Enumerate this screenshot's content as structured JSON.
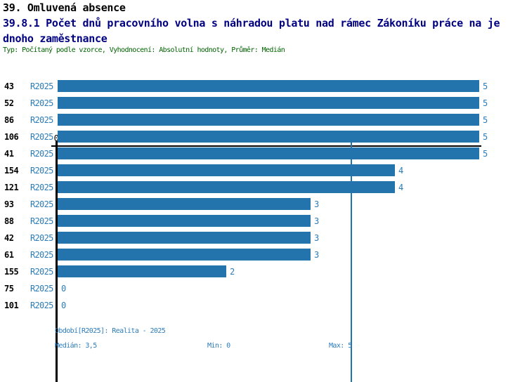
{
  "header": {
    "title_line1": "39. Omluvená absence",
    "title_line2": "39.8.1 Počet dnů pracovního volna s náhradou platu nad rámec Zákoníku práce na je",
    "title_line3": "dnoho zaměstnance",
    "meta": "Typ: Počítaný podle vzorce, Vyhodnocení: Absolutní hodnoty, Průměr: Medián"
  },
  "chart_data": {
    "type": "bar",
    "orientation": "horizontal",
    "title": "39.8.1 Počet dnů pracovního volna s náhradou platu nad rámec Zákoníku práce na jednoho zaměstnance",
    "categories": [
      "43",
      "52",
      "86",
      "106",
      "41",
      "154",
      "121",
      "93",
      "88",
      "42",
      "61",
      "155",
      "75",
      "101"
    ],
    "series": [
      {
        "name": "R2025",
        "values": [
          5,
          5,
          5,
          5,
          5,
          4,
          4,
          3,
          3,
          3,
          3,
          2,
          0,
          0
        ]
      }
    ],
    "period_label": "R2025",
    "origin_tick_label": "0",
    "xlim": [
      0,
      5
    ],
    "median_line": 3.5,
    "grid": false,
    "legend_position": "none",
    "bar_color": "#2374ad",
    "value_label_color": "#2c7cba",
    "axis_color": "#000000"
  },
  "footer": {
    "period": "Období[R2025]: Realita - 2025",
    "median": "Medián: 3,5",
    "min": "Min: 0",
    "max": "Max: 5"
  },
  "colors": {
    "title_primary": "#000000",
    "title_secondary": "#000080",
    "meta_green": "#006400",
    "blue_text": "#2c7cba",
    "bar_blue": "#2374ad"
  }
}
